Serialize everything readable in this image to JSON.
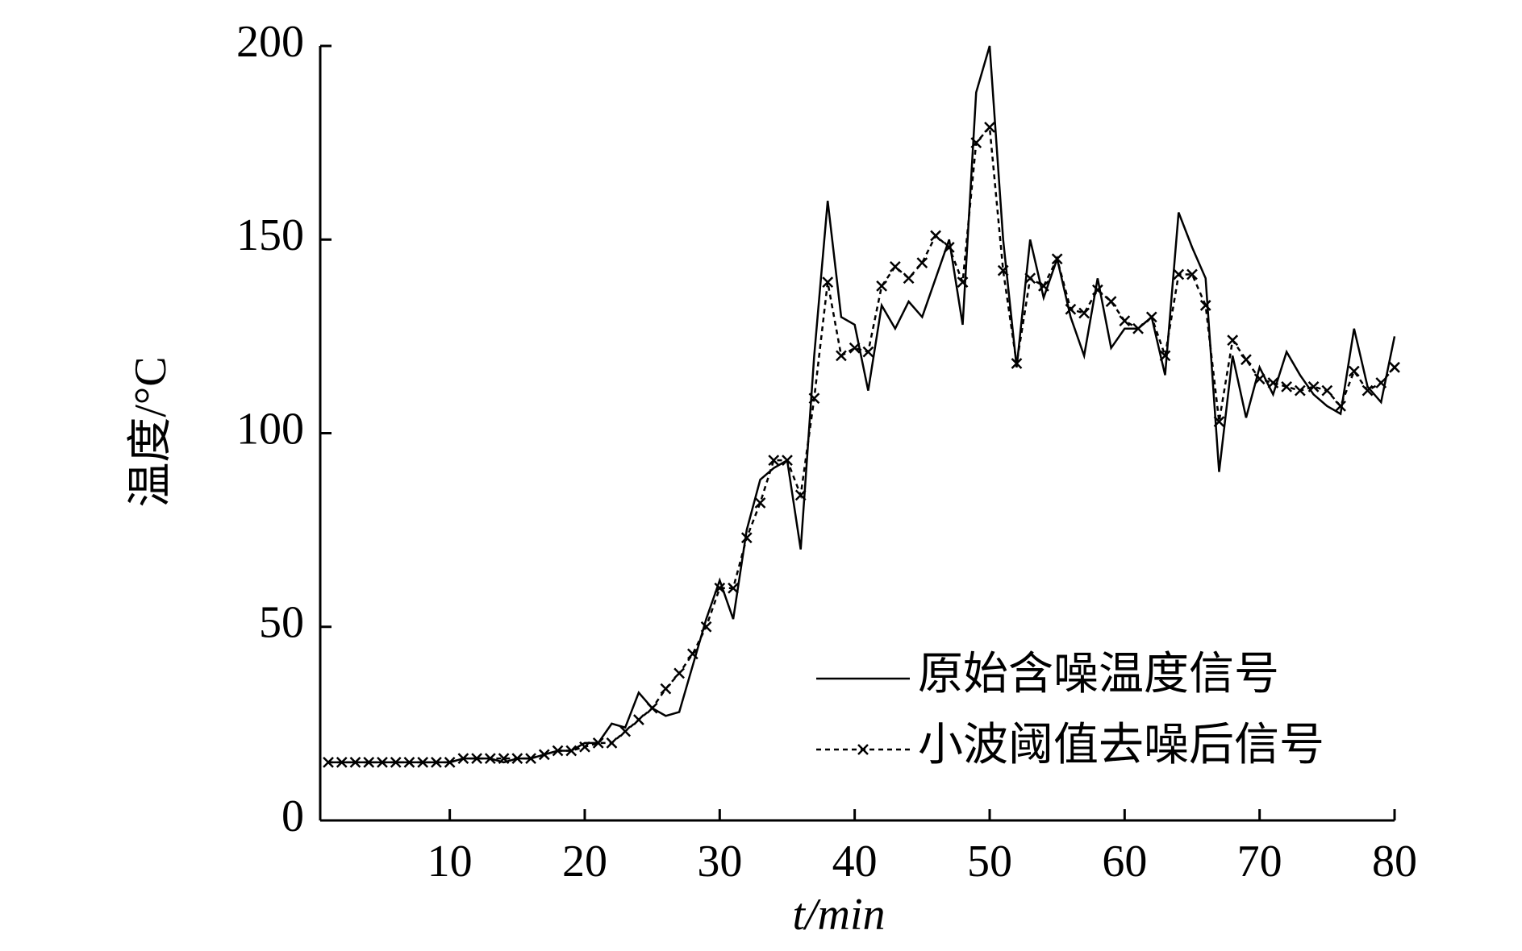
{
  "chart_data": {
    "type": "line",
    "xlabel": "t/min",
    "ylabel": "温度/°C",
    "x": [
      1,
      2,
      3,
      4,
      5,
      6,
      7,
      8,
      9,
      10,
      11,
      12,
      13,
      14,
      15,
      16,
      17,
      18,
      19,
      20,
      21,
      22,
      23,
      24,
      25,
      26,
      27,
      28,
      29,
      30,
      31,
      32,
      33,
      34,
      35,
      36,
      37,
      38,
      39,
      40,
      41,
      42,
      43,
      44,
      45,
      46,
      47,
      48,
      49,
      50,
      51,
      52,
      53,
      54,
      55,
      56,
      57,
      58,
      59,
      60,
      61,
      62,
      63,
      64,
      65,
      66,
      67,
      68,
      69,
      70,
      71,
      72,
      73,
      74,
      75,
      76,
      77,
      78,
      79,
      80
    ],
    "series": [
      {
        "name": "原始含噪温度信号",
        "color": "#000000",
        "style": "solid",
        "values": [
          15,
          15,
          15,
          15,
          15,
          15,
          15,
          15,
          15,
          15,
          16,
          16,
          16,
          15,
          16,
          16,
          17,
          18,
          18,
          20,
          20,
          25,
          24,
          33,
          29,
          27,
          28,
          40,
          52,
          62,
          52,
          75,
          88,
          91,
          93,
          70,
          120,
          160,
          130,
          128,
          111,
          133,
          127,
          134,
          130,
          140,
          150,
          128,
          188,
          200,
          150,
          117,
          150,
          135,
          145,
          130,
          120,
          140,
          122,
          127,
          127,
          130,
          115,
          157,
          148,
          140,
          90,
          120,
          104,
          117,
          110,
          121,
          115,
          110,
          107,
          105,
          127,
          112,
          108,
          125
        ]
      },
      {
        "name": "小波阈值去噪后信号",
        "color": "#000000",
        "style": "dotted-x",
        "values": [
          15,
          15,
          15,
          15,
          15,
          15,
          15,
          15,
          15,
          15,
          16,
          16,
          16,
          16,
          16,
          16,
          17,
          18,
          18,
          19,
          20,
          20,
          23,
          26,
          29,
          34,
          38,
          43,
          50,
          60,
          60,
          73,
          82,
          93,
          93,
          84,
          109,
          139,
          120,
          122,
          121,
          138,
          143,
          140,
          144,
          151,
          148,
          139,
          175,
          179,
          142,
          118,
          140,
          138,
          145,
          132,
          131,
          137,
          134,
          129,
          127,
          130,
          120,
          141,
          141,
          133,
          103,
          124,
          119,
          114,
          113,
          112,
          111,
          112,
          111,
          107,
          116,
          111,
          113,
          117
        ]
      }
    ],
    "xlim": [
      0.4,
      80
    ],
    "ylim": [
      0,
      200
    ],
    "xticks": [
      10,
      20,
      30,
      40,
      50,
      60,
      70,
      80
    ],
    "yticks": [
      0,
      50,
      100,
      150,
      200
    ],
    "grid": false,
    "legend": "lower right"
  }
}
